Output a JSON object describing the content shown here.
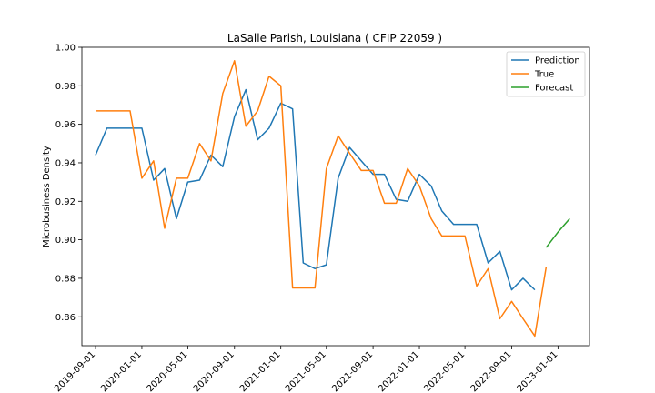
{
  "chart_data": {
    "type": "line",
    "title": "LaSalle Parish, Louisiana ( CFIP 22059 )",
    "xlabel": "",
    "ylabel": "Microbusiness Density",
    "ylim": [
      0.845,
      1.0
    ],
    "xlim": [
      "2019-07-27",
      "2023-03-25"
    ],
    "x_ticks": [
      "2019-09-01",
      "2020-01-01",
      "2020-05-01",
      "2020-09-01",
      "2021-01-01",
      "2021-05-01",
      "2021-09-01",
      "2022-01-01",
      "2022-05-01",
      "2022-09-01",
      "2023-01-01"
    ],
    "y_ticks": [
      0.86,
      0.88,
      0.9,
      0.92,
      0.94,
      0.96,
      0.98,
      1.0
    ],
    "y_tick_labels": [
      "0.86",
      "0.88",
      "0.90",
      "0.92",
      "0.94",
      "0.96",
      "0.98",
      "1.00"
    ],
    "grid": false,
    "legend_position": "top-right",
    "series": [
      {
        "name": "Prediction",
        "color": "#1f77b4",
        "x": [
          "2019-09-01",
          "2019-10-01",
          "2019-11-01",
          "2019-12-01",
          "2020-01-01",
          "2020-02-01",
          "2020-03-01",
          "2020-04-01",
          "2020-05-01",
          "2020-06-01",
          "2020-07-01",
          "2020-08-01",
          "2020-09-01",
          "2020-10-01",
          "2020-11-01",
          "2020-12-01",
          "2021-01-01",
          "2021-02-01",
          "2021-03-01",
          "2021-04-01",
          "2021-05-01",
          "2021-06-01",
          "2021-07-01",
          "2021-08-01",
          "2021-09-01",
          "2021-10-01",
          "2021-11-01",
          "2021-12-01",
          "2022-01-01",
          "2022-02-01",
          "2022-03-01",
          "2022-04-01",
          "2022-05-01",
          "2022-06-01",
          "2022-07-01",
          "2022-08-01",
          "2022-09-01",
          "2022-10-01",
          "2022-11-01"
        ],
        "values": [
          0.944,
          0.958,
          0.958,
          0.958,
          0.958,
          0.931,
          0.937,
          0.911,
          0.93,
          0.931,
          0.944,
          0.938,
          0.964,
          0.978,
          0.952,
          0.958,
          0.971,
          0.968,
          0.888,
          0.885,
          0.887,
          0.932,
          0.948,
          0.941,
          0.934,
          0.934,
          0.921,
          0.92,
          0.934,
          0.928,
          0.915,
          0.908,
          0.908,
          0.908,
          0.888,
          0.894,
          0.874,
          0.88,
          0.874
        ]
      },
      {
        "name": "True",
        "color": "#ff7f0e",
        "x": [
          "2019-09-01",
          "2019-10-01",
          "2019-11-01",
          "2019-12-01",
          "2020-01-01",
          "2020-02-01",
          "2020-03-01",
          "2020-04-01",
          "2020-05-01",
          "2020-06-01",
          "2020-07-01",
          "2020-08-01",
          "2020-09-01",
          "2020-10-01",
          "2020-11-01",
          "2020-12-01",
          "2021-01-01",
          "2021-02-01",
          "2021-03-01",
          "2021-04-01",
          "2021-05-01",
          "2021-06-01",
          "2021-07-01",
          "2021-08-01",
          "2021-09-01",
          "2021-10-01",
          "2021-11-01",
          "2021-12-01",
          "2022-01-01",
          "2022-02-01",
          "2022-03-01",
          "2022-04-01",
          "2022-05-01",
          "2022-06-01",
          "2022-07-01",
          "2022-08-01",
          "2022-09-01",
          "2022-10-01",
          "2022-11-01",
          "2022-12-01"
        ],
        "values": [
          0.967,
          0.967,
          0.967,
          0.967,
          0.932,
          0.941,
          0.906,
          0.932,
          0.932,
          0.95,
          0.941,
          0.976,
          0.993,
          0.959,
          0.967,
          0.985,
          0.98,
          0.875,
          0.875,
          0.875,
          0.937,
          0.954,
          0.945,
          0.936,
          0.936,
          0.919,
          0.919,
          0.937,
          0.928,
          0.911,
          0.902,
          0.902,
          0.902,
          0.876,
          0.885,
          0.859,
          0.868,
          0.859,
          0.85,
          0.886
        ]
      },
      {
        "name": "Forecast",
        "color": "#2ca02c",
        "x": [
          "2022-12-01",
          "2023-01-01",
          "2023-02-01"
        ],
        "values": [
          0.896,
          0.904,
          0.911
        ]
      }
    ]
  }
}
